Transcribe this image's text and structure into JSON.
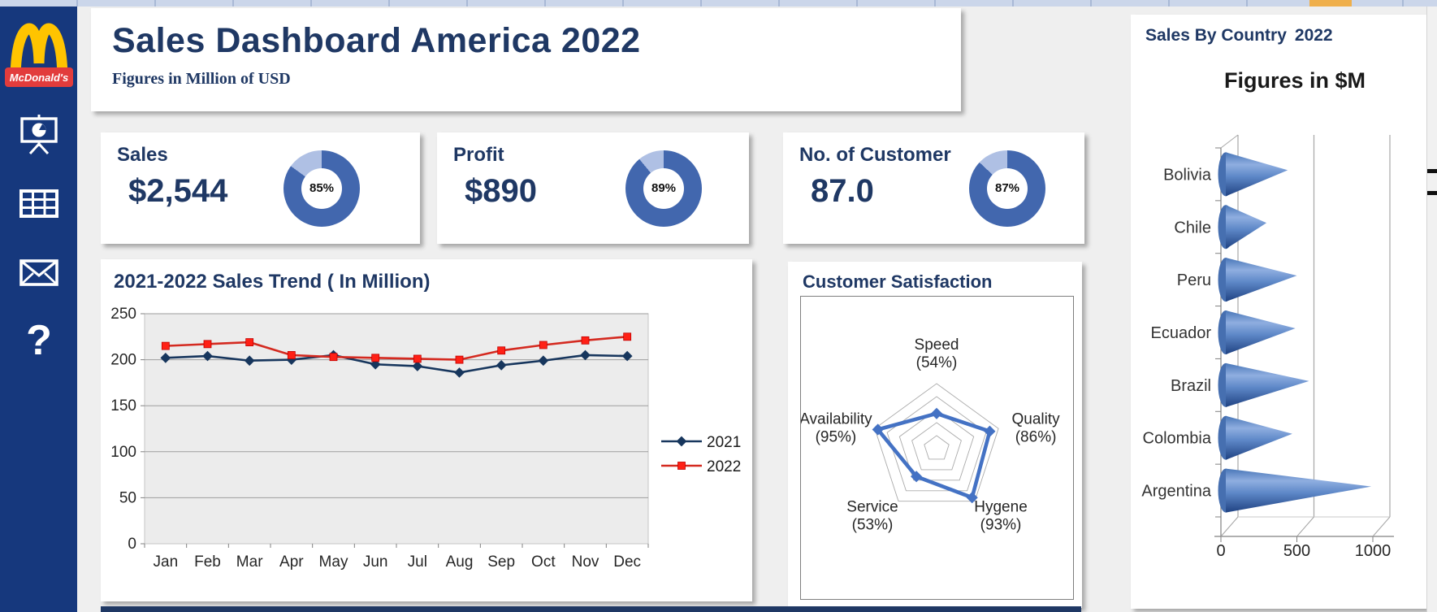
{
  "window": {
    "top_strip_color": "#CBD6EA",
    "top_accent_color": "#EFAF4B",
    "bottom_bar_color": "#1F3864",
    "background_color": "#EFEFEF"
  },
  "sidebar": {
    "bg_color": "#16387D",
    "logo": {
      "brand": "McDonald's",
      "arches_color": "#FFC400",
      "band_color": "#E23C3C"
    },
    "nav": [
      {
        "icon": "presentation-chart-icon"
      },
      {
        "icon": "table-icon"
      },
      {
        "icon": "mail-icon"
      },
      {
        "icon": "question-icon"
      }
    ]
  },
  "header": {
    "title": "Sales Dashboard America 2022",
    "subtitle": "Figures in Million of USD"
  },
  "kpis": [
    {
      "label": "Sales",
      "value": "$2,544",
      "percent": 85,
      "percent_label": "85%"
    },
    {
      "label": "Profit",
      "value": "$890",
      "percent": 89,
      "percent_label": "89%"
    },
    {
      "label": "No. of Customer",
      "value": "87.0",
      "percent": 87,
      "percent_label": "87%"
    }
  ],
  "colors": {
    "navy": "#1F3864",
    "donut_fill": "#4267AE",
    "donut_rest": "#AFC0E4",
    "radar_blue": "#4472C4",
    "cone_blue_dark": "#1F4282",
    "cone_blue_light": "#8FAEE0"
  },
  "chart_data": [
    {
      "id": "sales_trend",
      "type": "line",
      "title": "2021-2022 Sales Trend ( In Million)",
      "categories": [
        "Jan",
        "Feb",
        "Mar",
        "Apr",
        "May",
        "Jun",
        "Jul",
        "Aug",
        "Sep",
        "Oct",
        "Nov",
        "Dec"
      ],
      "series": [
        {
          "name": "2021",
          "color": "#17365D",
          "marker": "diamond",
          "values": [
            202,
            204,
            199,
            200,
            205,
            195,
            193,
            186,
            194,
            199,
            205,
            204
          ]
        },
        {
          "name": "2022",
          "color": "#D42A20",
          "marker": "square",
          "marker_color": "#FF2015",
          "values": [
            215,
            217,
            219,
            205,
            203,
            202,
            201,
            200,
            210,
            216,
            221,
            225
          ]
        }
      ],
      "ylim": [
        0,
        250
      ],
      "yticks": [
        0,
        50,
        100,
        150,
        200,
        250
      ],
      "grid": true,
      "legend_position": "right",
      "plot_bg": "#ECECEC"
    },
    {
      "id": "customer_satisfaction",
      "type": "radar",
      "title": "Customer Satisfaction",
      "max": 100,
      "rings": [
        20,
        40,
        60,
        80,
        100
      ],
      "color": "#4472C4",
      "axes": [
        {
          "label": "Speed",
          "value": 54
        },
        {
          "label": "Quality",
          "value": 86
        },
        {
          "label": "Hygene",
          "value": 93
        },
        {
          "label": "Service",
          "value": 53
        },
        {
          "label": "Availability",
          "value": 95
        }
      ]
    },
    {
      "id": "sales_by_country",
      "type": "bar",
      "subtype": "cone-3d-horizontal",
      "title": "Sales By Country",
      "year": "2022",
      "chart_title": "Figures in $M",
      "categories": [
        "Bolivia",
        "Chile",
        "Peru",
        "Ecuador",
        "Brazil",
        "Colombia",
        "Argentina"
      ],
      "values": [
        440,
        300,
        500,
        490,
        580,
        470,
        990
      ],
      "xlim": [
        0,
        1000
      ],
      "xticks": [
        0,
        500,
        1000
      ]
    }
  ]
}
